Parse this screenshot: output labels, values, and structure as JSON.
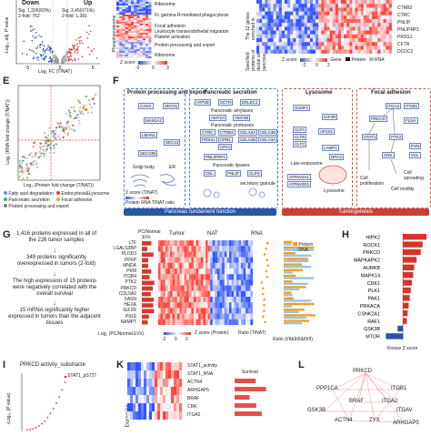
{
  "panel_labels": {
    "E": "E",
    "F": "F",
    "G": "G",
    "H": "H",
    "I": "I",
    "K": "K",
    "L": "L"
  },
  "top": {
    "volcano": {
      "down_label": "Down",
      "up_label": "Up",
      "down_stat1": "Sig. 1,326(60%)",
      "down_stat2": "2-fold: 762",
      "up_stat1": "Sig. 3,450(71%)",
      "up_stat2": "2-fold: 1,391",
      "xlabel": "Log₂ FC (T/NAT)",
      "ylabel": "-Log₁₀ adj. P value",
      "xticks": [
        "-5",
        "0",
        "5"
      ]
    },
    "pathways": [
      "Ribosome",
      "Fc gamma R-mediated phagocytosis",
      "Focal adhesion",
      "Leukocyte transendothelial migration",
      "Platelet activation",
      "Protein processing and export",
      "Ribosome"
    ],
    "phospho_label": "Phosphoproteome",
    "zscore_label": "Z score",
    "zticks": [
      "-3",
      "0",
      "3"
    ],
    "right_genes": [
      "CTRB2",
      "CTRC",
      "PNLIP",
      "PNLIPRP1",
      "PRSS1",
      "CFTR",
      "DCDC2"
    ],
    "right_side_top": "The 12 genes enriched in",
    "right_side_bottom": "Specified proteins of ductal cells of pancreas",
    "right_legend": {
      "zscore": "Z score",
      "gene": "Gene",
      "protein": "Protein",
      "rna": "RNA",
      "zticks": [
        "-2",
        "0",
        "2"
      ]
    }
  },
  "E": {
    "xlabel": "Log₂ (Protein fold change (T/NAT))",
    "ylabel": "Log₂ (RNA fold change (T/NAT))",
    "legend": [
      {
        "label": "Fatty acid degradation",
        "color": "#6a8fd8"
      },
      {
        "label": "Endocytosis&Lysosome",
        "color": "#e8433a"
      },
      {
        "label": "Pancreatic secretion",
        "color": "#3cb56b"
      },
      {
        "label": "Focal adhesion",
        "color": "#f0a022"
      },
      {
        "label": "Protein processing and export",
        "color": "#7f7f7f"
      }
    ]
  },
  "F": {
    "groups": {
      "protein": "Protein processing and export",
      "secretion": "Pancreatic secretion",
      "lysosome": "Lysosome",
      "focal": "Focal adhesion"
    },
    "sub": {
      "amylases": "Pancreatic amylases",
      "proteases": "Pancreatic proteases",
      "lipases": "Pancreatic lipases",
      "endosome": "Late endosome",
      "lysosome_lbl": "Lysosome",
      "golgi": "Golgi body",
      "er": "ER",
      "secretory": "secretory granule"
    },
    "genes_protein": [
      "CANX",
      "SEC61",
      "MAN1A2",
      "LMAN1",
      "SEC13",
      "SEC23B"
    ],
    "genes_secretion": [
      "ATP2B",
      "SCTR",
      "ERLEC1",
      "AMY2A",
      "AMY2B",
      "CTRC",
      "CTRB2",
      "CELA2A",
      "CELA3B",
      "PRSS1",
      "CPB1",
      "CELA2B",
      "CELA3A",
      "CPA1",
      "PNLIPRP1",
      "CEL",
      "PNLIP",
      "CLPS"
    ],
    "genes_lysosome": [
      "SUMF1",
      "IGF2R",
      "CLTA",
      "CLTB",
      "CLTC",
      "AP1S1",
      "LAMP1",
      "NPC2",
      "ATP6V0A1",
      "ATP6V0D1"
    ],
    "genes_focal": [
      "ITGA2",
      "ITGB1",
      "PRKCD",
      "FLNA",
      "STAT1",
      "PTK2",
      "CRK",
      "PXN",
      "VCL"
    ],
    "bottom_left": "Pancreas fundament function",
    "bottom_right": "Tumorgenesis",
    "legend": {
      "zscore": "Z score",
      "label": "(T/NAT)",
      "zticks": [
        "-2",
        "0",
        "2"
      ],
      "protein": "Protein",
      "rna": "RNA",
      "ratio": "T/NAT ratio"
    },
    "outcomes": [
      "Cell proliferation",
      "Cell motility",
      "Cell spreading"
    ]
  },
  "G": {
    "flow": [
      "1,416 proteins expressed in all of the 226 tumor samples",
      "349 proteins significantly overexpressed in tumors (2-fold)",
      "The high expression of 15 proteins were negatively correlated with the overall survival",
      "15 mRNA significantly higher expressed in tumors than the adjacent tissues"
    ],
    "genes": [
      "LTF",
      "LGALS3BP",
      "PLOD3",
      "PFKP",
      "MNDA",
      "PKM",
      "ITGB4",
      "PTK2",
      "PRKCD",
      "COL5A2",
      "FASN",
      "HEXA",
      "IGF2R",
      "PIGS",
      "NAMPT"
    ],
    "col_headers": {
      "ev": "PC/Normal EVs",
      "tumor": "Tumor",
      "nat": "NAT",
      "rna": "RNA"
    },
    "legend": {
      "protein": "Protein",
      "rna": "RNA"
    },
    "xlabel_left": "Log₂ (PC/Normal EVs)",
    "xlabel_mid": "Z score (Protein)",
    "xlabel_ratio": "Ratio (T/NAT)",
    "xlabel_right": "Ratio (I/II&III/I&III/II)",
    "zticks": [
      "-2",
      "0",
      "2"
    ]
  },
  "H": {
    "xlabel": "Kinase Z score",
    "kinases": [
      {
        "name": "HIPK2",
        "value": 9.0
      },
      {
        "name": "ROCK1",
        "value": 7.5
      },
      {
        "name": "PRKCD",
        "value": 6.8
      },
      {
        "name": "MAPKAPK2",
        "value": 5.2
      },
      {
        "name": "AURKB",
        "value": 4.3
      },
      {
        "name": "MAPK14",
        "value": 3.9
      },
      {
        "name": "CDK1",
        "value": 3.4
      },
      {
        "name": "PLK1",
        "value": 3.0
      },
      {
        "name": "PAK1",
        "value": 2.6
      },
      {
        "name": "PRKACA",
        "value": 2.2
      },
      {
        "name": "CSNK2A1",
        "value": 1.8
      },
      {
        "name": "RAF1",
        "value": 1.5
      },
      {
        "name": "GSK3B",
        "value": -2.0
      },
      {
        "name": "MTOR",
        "value": -6.5
      }
    ],
    "xlim": [
      -8,
      10
    ]
  },
  "I": {
    "title": "PRKCD activity_substracte",
    "point_label": "STAT1_pS727",
    "ylabel": "-Log₁₀ (P value)"
  },
  "K": {
    "rows": [
      "STAT1_activity",
      "STAT1_RNA",
      "ACTN4",
      "ARHGAP5",
      "BRAF",
      "CRK",
      "ITGA2"
    ],
    "survival": "Survival",
    "side": "Expression"
  },
  "L": {
    "nodes": [
      "PRKCD",
      "PPP1CA",
      "ITGB1",
      "BRAF",
      "ITGA2",
      "GSK3B",
      "ITGAV",
      "ACTN4",
      "ZYX",
      "ARHGAP5"
    ]
  }
}
